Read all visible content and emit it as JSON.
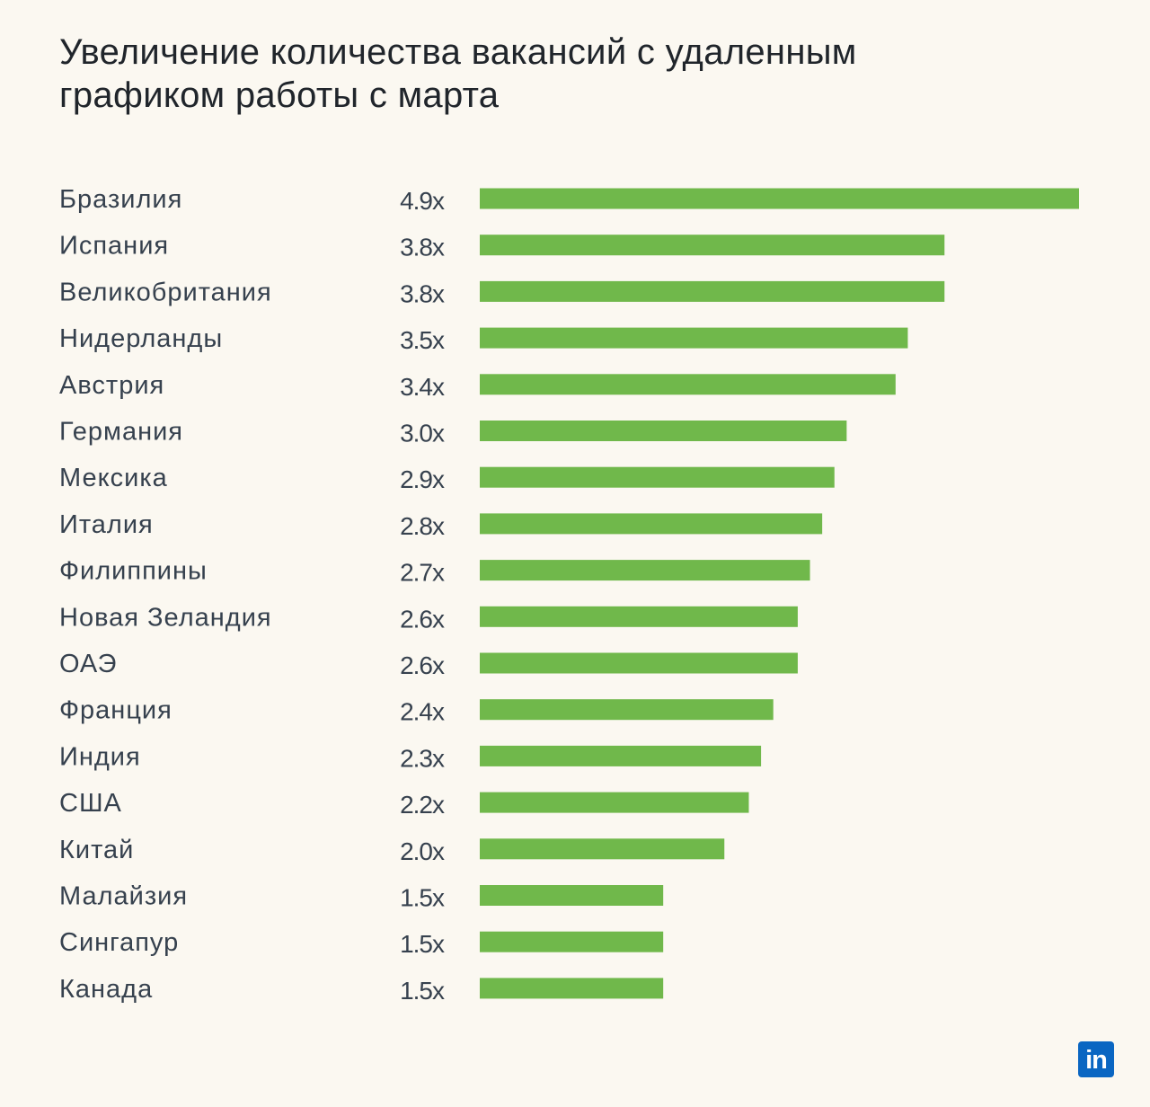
{
  "title": "Увеличение количества вакансий с удаленным графиком работы с марта",
  "logo": {
    "icon": "linkedin-logo-icon",
    "text": "in",
    "color": "#0a66c2"
  },
  "colors": {
    "bar": "#70b84b",
    "text": "#36414e",
    "background": "#fbf8f1"
  },
  "chart_data": {
    "type": "bar",
    "orientation": "horizontal",
    "title": "Увеличение количества вакансий с удаленным графиком работы с марта",
    "xlabel": "",
    "ylabel": "",
    "xlim": [
      0,
      4.9
    ],
    "grid": false,
    "categories": [
      "Бразилия",
      "Испания",
      "Великобритания",
      "Нидерланды",
      "Австрия",
      "Германия",
      "Мексика",
      "Италия",
      "Филиппины",
      "Новая Зеландия",
      "ОАЭ",
      "Франция",
      "Индия",
      "США",
      "Китай",
      "Малайзия",
      "Сингапур",
      "Канада"
    ],
    "values": [
      4.9,
      3.8,
      3.8,
      3.5,
      3.4,
      3.0,
      2.9,
      2.8,
      2.7,
      2.6,
      2.6,
      2.4,
      2.3,
      2.2,
      2.0,
      1.5,
      1.5,
      1.5
    ],
    "value_labels": [
      "4.9x",
      "3.8x",
      "3.8x",
      "3.5x",
      "3.4x",
      "3.0x",
      "2.9x",
      "2.8x",
      "2.7x",
      "2.6x",
      "2.6x",
      "2.4x",
      "2.3x",
      "2.2x",
      "2.0x",
      "1.5x",
      "1.5x",
      "1.5x"
    ]
  }
}
